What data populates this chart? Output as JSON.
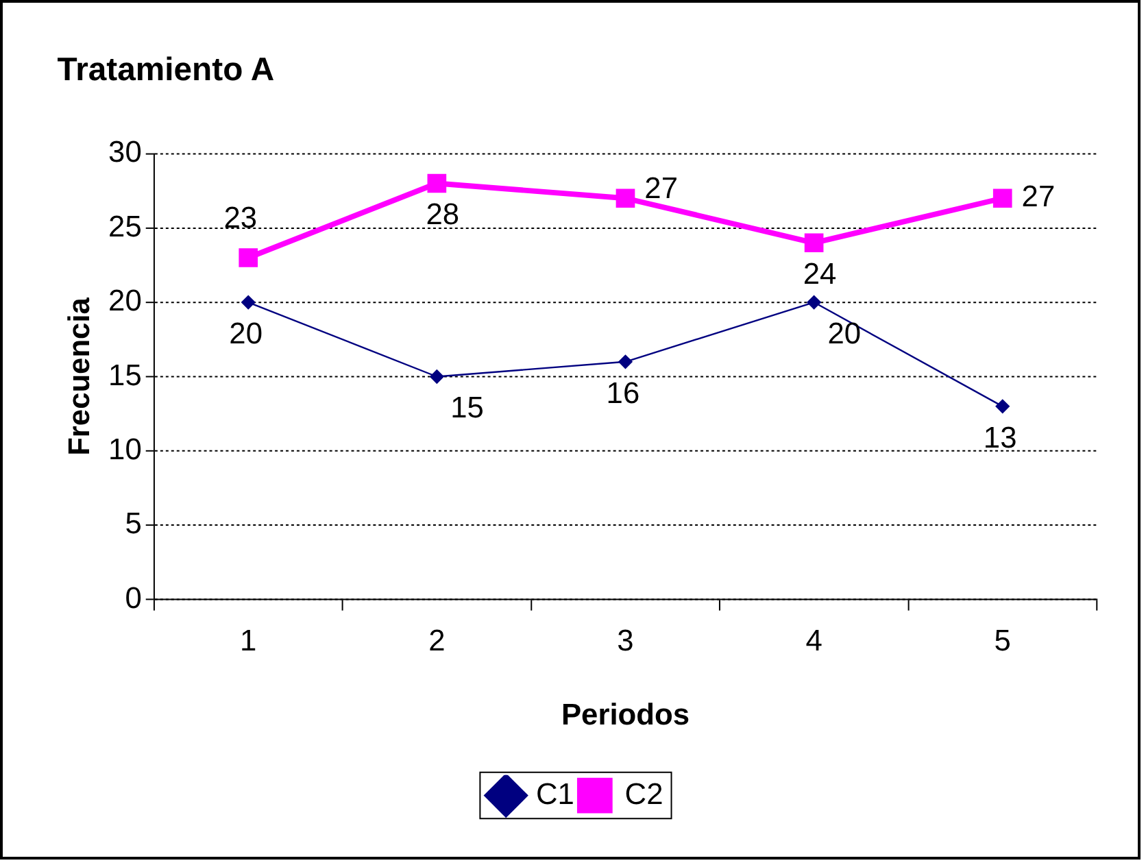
{
  "chart_data": {
    "type": "line",
    "title": "Tratamiento A",
    "xlabel": "Periodos",
    "ylabel": "Frecuencia",
    "categories": [
      "1",
      "2",
      "3",
      "4",
      "5"
    ],
    "series": [
      {
        "name": "C1",
        "color": "#000080",
        "values": [
          20,
          15,
          16,
          20,
          13
        ],
        "marker": "diamond"
      },
      {
        "name": "C2",
        "color": "#ff00ff",
        "values": [
          23,
          28,
          27,
          24,
          27
        ],
        "marker": "square"
      }
    ],
    "ylim": [
      0,
      30
    ],
    "yticks": [
      0,
      5,
      10,
      15,
      20,
      25,
      30
    ],
    "grid": "y",
    "legend": "bottom",
    "data_labels": true,
    "line_style": "solid"
  }
}
